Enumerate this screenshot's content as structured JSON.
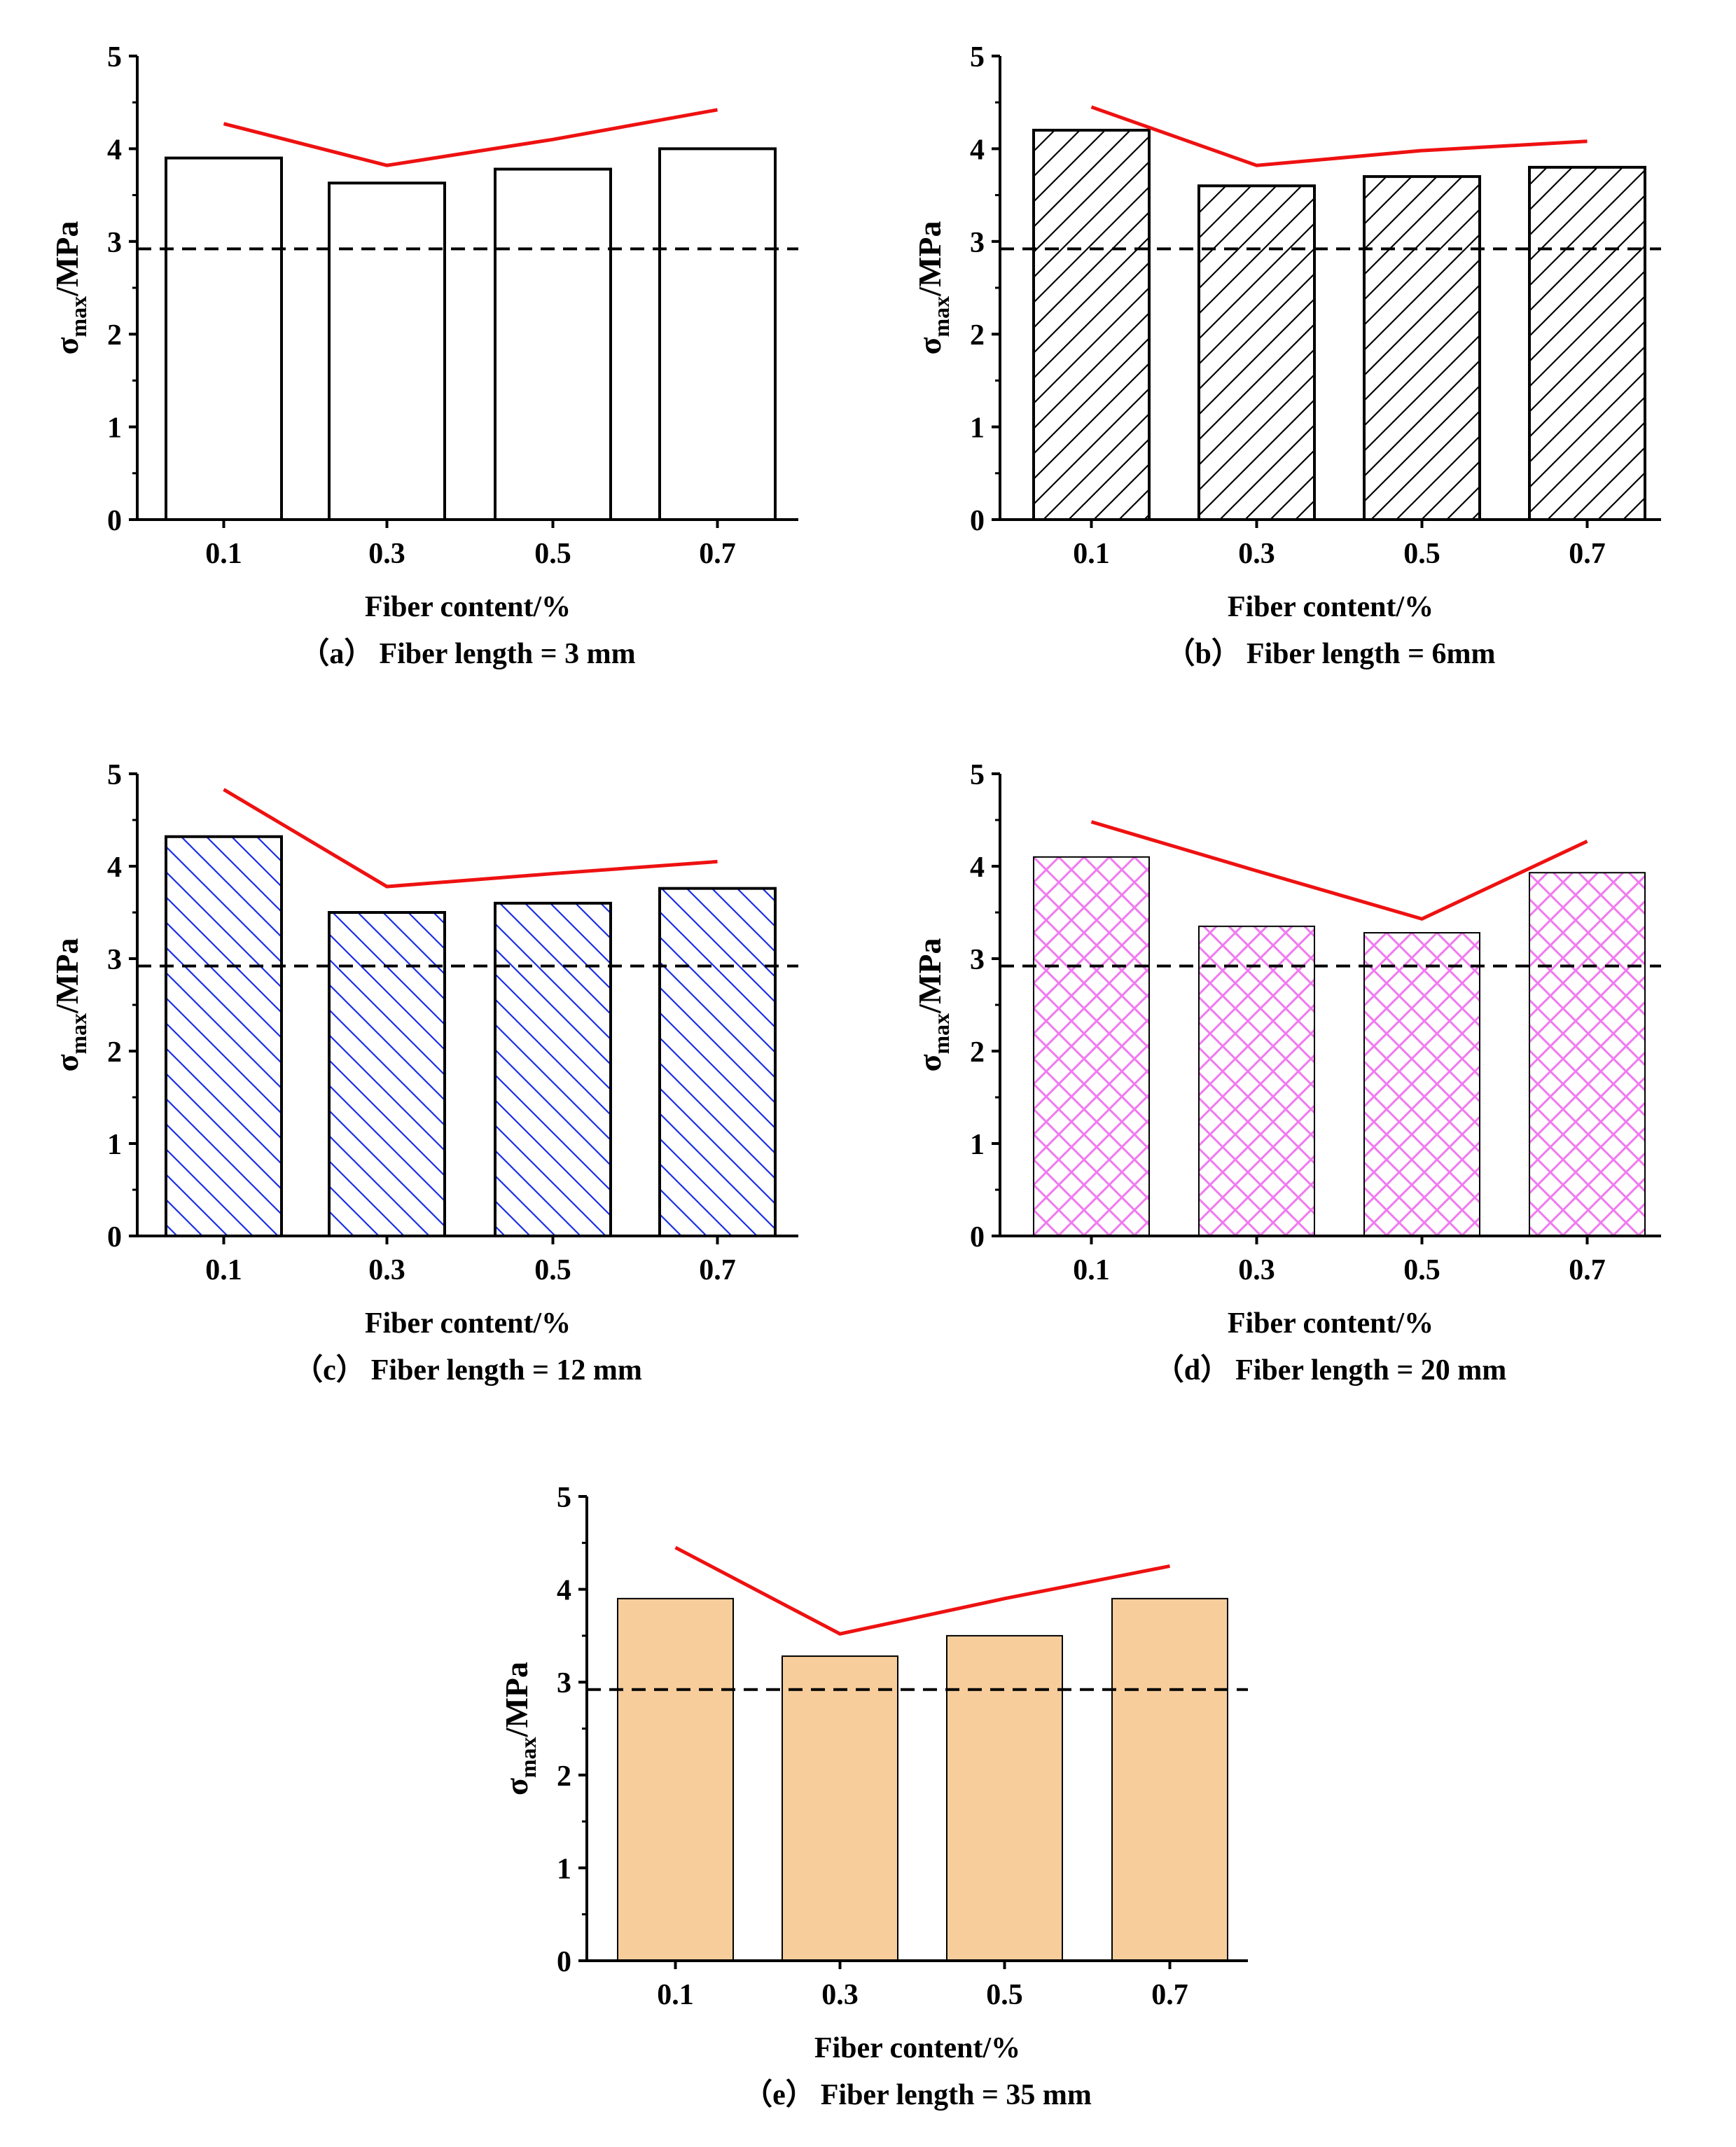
{
  "chart_data": [
    {
      "type": "bar",
      "panel_label": "（a）",
      "caption": "Fiber length = 3 mm",
      "categories": [
        "0.1",
        "0.3",
        "0.5",
        "0.7"
      ],
      "values": [
        3.9,
        3.63,
        3.78,
        4.0
      ],
      "trend_line": [
        4.27,
        3.82,
        4.1,
        4.42
      ],
      "reference_value": 2.92,
      "xlabel": "Fiber content/%",
      "ylabel_symbol": "σ",
      "ylabel_sub": "max",
      "ylabel_unit": "/MPa",
      "yticks": [
        "0",
        "1",
        "2",
        "3",
        "4",
        "5"
      ],
      "ylim": [
        0,
        5
      ],
      "pattern": "none",
      "fill_color": "#ffffff",
      "hatch_color": "#000000",
      "trend_color": "#ee1111"
    },
    {
      "type": "bar",
      "panel_label": "（b）",
      "caption": "Fiber length = 6mm",
      "categories": [
        "0.1",
        "0.3",
        "0.5",
        "0.7"
      ],
      "values": [
        4.2,
        3.6,
        3.7,
        3.8
      ],
      "trend_line": [
        4.45,
        3.82,
        3.98,
        4.08
      ],
      "reference_value": 2.92,
      "xlabel": "Fiber content/%",
      "ylabel_symbol": "σ",
      "ylabel_sub": "max",
      "ylabel_unit": "/MPa",
      "yticks": [
        "0",
        "1",
        "2",
        "3",
        "4",
        "5"
      ],
      "ylim": [
        0,
        5
      ],
      "pattern": "diag-up",
      "fill_color": "#ffffff",
      "hatch_color": "#000000",
      "trend_color": "#ee1111"
    },
    {
      "type": "bar",
      "panel_label": "（c）",
      "caption": "Fiber length = 12 mm",
      "categories": [
        "0.1",
        "0.3",
        "0.5",
        "0.7"
      ],
      "values": [
        4.32,
        3.5,
        3.6,
        3.76
      ],
      "trend_line": [
        4.83,
        3.78,
        3.92,
        4.05
      ],
      "reference_value": 2.92,
      "xlabel": "Fiber content/%",
      "ylabel_symbol": "σ",
      "ylabel_sub": "max",
      "ylabel_unit": "/MPa",
      "yticks": [
        "0",
        "1",
        "2",
        "3",
        "4",
        "5"
      ],
      "ylim": [
        0,
        5
      ],
      "pattern": "diag-down",
      "fill_color": "#ffffff",
      "hatch_color": "#1a2ee6",
      "trend_color": "#ee1111"
    },
    {
      "type": "bar",
      "panel_label": "（d）",
      "caption": "Fiber length = 20 mm",
      "categories": [
        "0.1",
        "0.3",
        "0.5",
        "0.7"
      ],
      "values": [
        4.1,
        3.35,
        3.28,
        3.93
      ],
      "trend_line": [
        4.48,
        3.95,
        3.43,
        4.27
      ],
      "reference_value": 2.92,
      "xlabel": "Fiber content/%",
      "ylabel_symbol": "σ",
      "ylabel_sub": "max",
      "ylabel_unit": "/MPa",
      "yticks": [
        "0",
        "1",
        "2",
        "3",
        "4",
        "5"
      ],
      "ylim": [
        0,
        5
      ],
      "pattern": "crosshatch",
      "fill_color": "#ffffff",
      "hatch_color": "#f07af0",
      "trend_color": "#ee1111"
    },
    {
      "type": "bar",
      "panel_label": "（e）",
      "caption": "Fiber length = 35 mm",
      "categories": [
        "0.1",
        "0.3",
        "0.5",
        "0.7"
      ],
      "values": [
        3.9,
        3.28,
        3.5,
        3.9
      ],
      "trend_line": [
        4.45,
        3.52,
        3.9,
        4.25
      ],
      "reference_value": 2.92,
      "xlabel": "Fiber content/%",
      "ylabel_symbol": "σ",
      "ylabel_sub": "max",
      "ylabel_unit": "/MPa",
      "yticks": [
        "0",
        "1",
        "2",
        "3",
        "4",
        "5"
      ],
      "ylim": [
        0,
        5
      ],
      "pattern": "solid",
      "fill_color": "#f8cd9c",
      "hatch_color": "#f8cd9c",
      "trend_color": "#ee1111"
    }
  ]
}
